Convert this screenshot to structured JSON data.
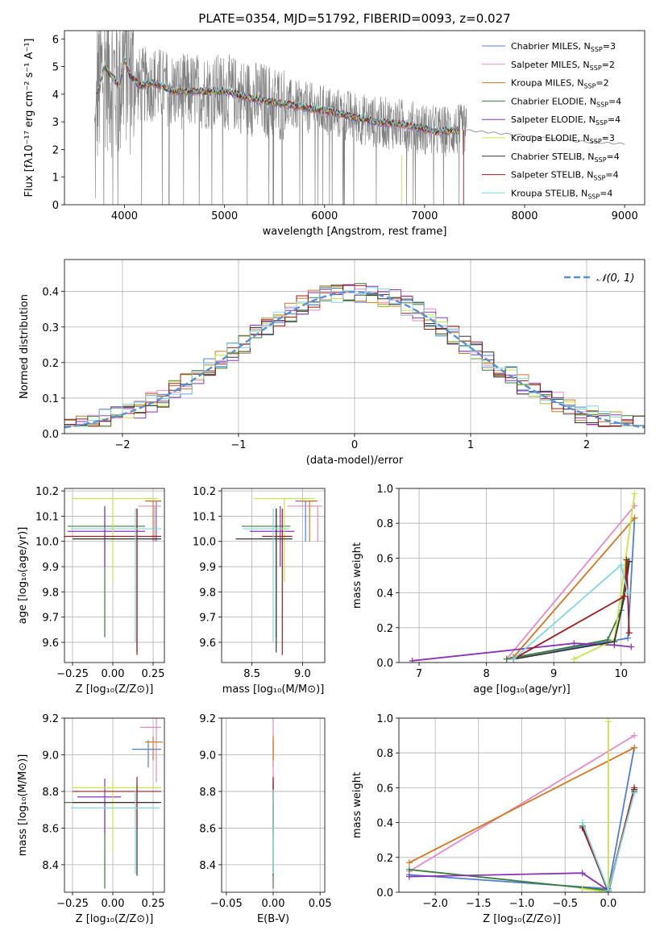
{
  "colors": {
    "Chabrier MILES": "#4f7fd0",
    "Salpeter MILES": "#e58ac6",
    "Kroupa MILES": "#d2771c",
    "Chabrier ELODIE": "#3d7d3d",
    "Salpeter ELODIE": "#8b32b8",
    "Kroupa ELODIE": "#c9e34a",
    "Chabrier STELIB": "#333333",
    "Salpeter STELIB": "#a01b1b",
    "Kroupa STELIB": "#7fd7de",
    "data": "#808080",
    "normal": "#5a8fd6"
  },
  "chart_data": [
    {
      "id": "spectrum",
      "type": "line",
      "title": "PLATE=0354, MJD=51792, FIBERID=0093, z=0.027",
      "xlabel": "wavelength [Angstrom, rest frame]",
      "ylabel": "Flux [fλ10⁻¹⁷ erg cm⁻² s⁻¹ A⁻¹]",
      "xlim": [
        3400,
        9200
      ],
      "ylim": [
        0,
        6.3
      ],
      "xticks": [
        4000,
        5000,
        6000,
        7000,
        8000,
        9000
      ],
      "yticks": [
        0,
        1,
        2,
        3,
        4,
        5,
        6
      ],
      "legend_position": "top-right",
      "model_shape": [
        [
          3720,
          4.0
        ],
        [
          3750,
          4.3
        ],
        [
          3800,
          5.0
        ],
        [
          3860,
          4.7
        ],
        [
          3950,
          4.3
        ],
        [
          4000,
          5.3
        ],
        [
          4050,
          4.7
        ],
        [
          4150,
          4.3
        ],
        [
          4300,
          4.4
        ],
        [
          4500,
          4.1
        ],
        [
          4800,
          4.1
        ],
        [
          5000,
          4.1
        ],
        [
          5200,
          3.9
        ],
        [
          5500,
          3.7
        ],
        [
          6000,
          3.4
        ],
        [
          6500,
          3.0
        ],
        [
          6800,
          2.9
        ],
        [
          7100,
          2.65
        ],
        [
          7400,
          2.7
        ],
        [
          8000,
          2.5
        ],
        [
          8500,
          2.3
        ],
        [
          9000,
          2.2
        ]
      ],
      "series": [
        {
          "name": "Chabrier MILES, N_SSP=3",
          "label_main": "Chabrier MILES, N",
          "label_sub": "SSP",
          "label_end": "=3"
        },
        {
          "name": "Salpeter MILES, N_SSP=2",
          "label_main": "Salpeter MILES, N",
          "label_sub": "SSP",
          "label_end": "=2"
        },
        {
          "name": "Kroupa MILES, N_SSP=2",
          "label_main": "Kroupa MILES, N",
          "label_sub": "SSP",
          "label_end": "=2"
        },
        {
          "name": "Chabrier ELODIE, N_SSP=4",
          "label_main": "Chabrier ELODIE, N",
          "label_sub": "SSP",
          "label_end": "=4"
        },
        {
          "name": "Salpeter ELODIE, N_SSP=4",
          "label_main": "Salpeter ELODIE, N",
          "label_sub": "SSP",
          "label_end": "=4"
        },
        {
          "name": "Kroupa ELODIE, N_SSP=3",
          "label_main": "Kroupa ELODIE, N",
          "label_sub": "SSP",
          "label_end": "=3"
        },
        {
          "name": "Chabrier STELIB, N_SSP=4",
          "label_main": "Chabrier STELIB, N",
          "label_sub": "SSP",
          "label_end": "=4"
        },
        {
          "name": "Salpeter STELIB, N_SSP=4",
          "label_main": "Salpeter STELIB, N",
          "label_sub": "SSP",
          "label_end": "=4"
        },
        {
          "name": "Kroupa STELIB, N_SSP=4",
          "label_main": "Kroupa STELIB, N",
          "label_sub": "SSP",
          "label_end": "=4"
        }
      ]
    },
    {
      "id": "residuals",
      "type": "line",
      "xlabel": "(data-model)/error",
      "ylabel": "Normed distribution",
      "xlim": [
        -2.5,
        2.5
      ],
      "ylim": [
        0,
        0.49
      ],
      "xticks": [
        -2,
        -1,
        0,
        1,
        2
      ],
      "yticks": [
        0.0,
        0.1,
        0.2,
        0.3,
        0.4
      ],
      "grid": true,
      "legend": "𝒩(0, 1)",
      "legend_position": "top-right"
    },
    {
      "id": "age_vs_Z",
      "type": "scatter",
      "xlabel": "Z [log₁₀(Z/Z⊙)]",
      "ylabel": "age [log₁₀(age/yr)]",
      "xlim": [
        -0.3,
        0.32
      ],
      "ylim": [
        9.52,
        10.21
      ],
      "xticks": [
        -0.25,
        0.0,
        0.25
      ],
      "yticks": [
        9.6,
        9.7,
        9.8,
        9.9,
        10.0,
        10.1,
        10.2
      ],
      "grid": true,
      "points": [
        {
          "model": "Chabrier MILES",
          "x": 0.27,
          "y": 10.16,
          "xerr": [
            0.05,
            0.03
          ],
          "yerr": [
            0.16,
            0.0
          ]
        },
        {
          "model": "Salpeter MILES",
          "x": 0.26,
          "y": 10.14,
          "xerr": [
            0.1,
            0.04
          ],
          "yerr": [
            0.14,
            0.0
          ]
        },
        {
          "model": "Kroupa MILES",
          "x": 0.25,
          "y": 10.16,
          "xerr": [
            0.05,
            0.05
          ],
          "yerr": [
            0.16,
            0.0
          ]
        },
        {
          "model": "Chabrier ELODIE",
          "x": -0.05,
          "y": 10.06,
          "xerr": [
            0.23,
            0.25
          ],
          "yerr": [
            0.44,
            0.07
          ]
        },
        {
          "model": "Salpeter ELODIE",
          "x": -0.05,
          "y": 10.04,
          "xerr": [
            0.23,
            0.25
          ],
          "yerr": [
            0.14,
            0.1
          ]
        },
        {
          "model": "Kroupa ELODIE",
          "x": -0.0,
          "y": 10.17,
          "xerr": [
            0.25,
            0.28
          ],
          "yerr": [
            0.33,
            0.0
          ]
        },
        {
          "model": "Chabrier STELIB",
          "x": 0.15,
          "y": 10.01,
          "xerr": [
            0.4,
            0.15
          ],
          "yerr": [
            0.45,
            0.12
          ]
        },
        {
          "model": "Salpeter STELIB",
          "x": 0.15,
          "y": 10.02,
          "xerr": [
            0.45,
            0.15
          ],
          "yerr": [
            0.47,
            0.11
          ]
        },
        {
          "model": "Kroupa STELIB",
          "x": 0.14,
          "y": 10.05,
          "xerr": [
            0.4,
            0.16
          ],
          "yerr": [
            0.45,
            0.08
          ]
        }
      ]
    },
    {
      "id": "age_vs_mass",
      "type": "scatter",
      "xlabel": "mass [log₁₀(M/M⊙)]",
      "ylabel": "",
      "xlim": [
        8.2,
        9.22
      ],
      "ylim": [
        9.52,
        10.21
      ],
      "xticks": [
        8.5,
        9.0
      ],
      "yticks": [
        9.6,
        9.7,
        9.8,
        9.9,
        10.0,
        10.1,
        10.2
      ],
      "grid": true,
      "points": [
        {
          "model": "Chabrier MILES",
          "x": 9.03,
          "y": 10.16,
          "xerr": [
            0.1,
            0.1
          ],
          "yerr": [
            0.16,
            0.0
          ]
        },
        {
          "model": "Salpeter MILES",
          "x": 9.15,
          "y": 10.14,
          "xerr": [
            0.3,
            0.05
          ],
          "yerr": [
            0.14,
            0.0
          ]
        },
        {
          "model": "Kroupa MILES",
          "x": 9.07,
          "y": 10.16,
          "xerr": [
            0.1,
            0.08
          ],
          "yerr": [
            0.16,
            0.0
          ]
        },
        {
          "model": "Chabrier ELODIE",
          "x": 8.74,
          "y": 10.06,
          "xerr": [
            0.34,
            0.14
          ],
          "yerr": [
            0.44,
            0.07
          ]
        },
        {
          "model": "Salpeter ELODIE",
          "x": 8.78,
          "y": 10.04,
          "xerr": [
            0.3,
            0.14
          ],
          "yerr": [
            0.14,
            0.1
          ]
        },
        {
          "model": "Kroupa ELODIE",
          "x": 8.82,
          "y": 10.17,
          "xerr": [
            0.3,
            0.3
          ],
          "yerr": [
            0.33,
            0.0
          ]
        },
        {
          "model": "Chabrier STELIB",
          "x": 8.74,
          "y": 10.01,
          "xerr": [
            0.4,
            0.16
          ],
          "yerr": [
            0.45,
            0.12
          ]
        },
        {
          "model": "Salpeter STELIB",
          "x": 8.8,
          "y": 10.02,
          "xerr": [
            0.2,
            0.1
          ],
          "yerr": [
            0.47,
            0.11
          ]
        },
        {
          "model": "Kroupa STELIB",
          "x": 8.71,
          "y": 10.05,
          "xerr": [
            0.3,
            0.16
          ],
          "yerr": [
            0.45,
            0.08
          ]
        }
      ]
    },
    {
      "id": "massweight_vs_age",
      "type": "line",
      "xlabel": "age [log₁₀(age/yr)]",
      "ylabel": "mass weight",
      "xlim": [
        6.7,
        10.35
      ],
      "ylim": [
        0,
        1.0
      ],
      "xticks": [
        7,
        8,
        9,
        10
      ],
      "yticks": [
        0.0,
        0.2,
        0.4,
        0.6,
        0.8,
        1.0
      ],
      "grid": true,
      "series": [
        {
          "model": "Chabrier MILES",
          "x": [
            8.4,
            10.1,
            10.2
          ],
          "y": [
            0.03,
            0.14,
            0.83
          ]
        },
        {
          "model": "Salpeter MILES",
          "x": [
            8.3,
            10.2
          ],
          "y": [
            0.02,
            0.9
          ]
        },
        {
          "model": "Kroupa MILES",
          "x": [
            8.4,
            10.2
          ],
          "y": [
            0.03,
            0.83
          ]
        },
        {
          "model": "Chabrier ELODIE",
          "x": [
            8.3,
            9.8,
            10.0,
            10.1
          ],
          "y": [
            0.02,
            0.13,
            0.3,
            0.58
          ]
        },
        {
          "model": "Salpeter ELODIE",
          "x": [
            6.9,
            9.3,
            9.9,
            10.15
          ],
          "y": [
            0.01,
            0.11,
            0.1,
            0.09
          ]
        },
        {
          "model": "Kroupa ELODIE",
          "x": [
            9.3,
            9.9,
            10.2
          ],
          "y": [
            0.02,
            0.13,
            0.97
          ]
        },
        {
          "model": "Chabrier STELIB",
          "x": [
            8.4,
            9.9,
            10.05,
            10.12
          ],
          "y": [
            0.02,
            0.12,
            0.38,
            0.58
          ]
        },
        {
          "model": "Salpeter STELIB",
          "x": [
            8.4,
            10.05,
            10.08,
            10.12
          ],
          "y": [
            0.02,
            0.38,
            0.59,
            0.17
          ]
        },
        {
          "model": "Kroupa STELIB",
          "x": [
            8.4,
            10.0,
            10.1
          ],
          "y": [
            0.02,
            0.56,
            0.4
          ]
        }
      ]
    },
    {
      "id": "mass_vs_Z",
      "type": "scatter",
      "xlabel": "Z [log₁₀(Z/Z⊙)]",
      "ylabel": "mass [log₁₀(M/M⊙)]",
      "xlim": [
        -0.3,
        0.32
      ],
      "ylim": [
        8.25,
        9.2
      ],
      "xticks": [
        -0.25,
        0.0,
        0.25
      ],
      "yticks": [
        8.4,
        8.6,
        8.8,
        9.0,
        9.2
      ],
      "grid": true,
      "points": [
        {
          "model": "Chabrier MILES",
          "x": 0.22,
          "y": 9.03,
          "xerr": [
            0.1,
            0.08
          ],
          "yerr": [
            0.1,
            0.05
          ]
        },
        {
          "model": "Salpeter MILES",
          "x": 0.27,
          "y": 9.15,
          "xerr": [
            0.1,
            0.03
          ],
          "yerr": [
            0.3,
            0.05
          ]
        },
        {
          "model": "Kroupa MILES",
          "x": 0.25,
          "y": 9.07,
          "xerr": [
            0.05,
            0.06
          ],
          "yerr": [
            0.1,
            0.03
          ]
        },
        {
          "model": "Chabrier ELODIE",
          "x": -0.05,
          "y": 8.74,
          "xerr": [
            0.25,
            0.33
          ],
          "yerr": [
            0.47,
            0.0
          ]
        },
        {
          "model": "Salpeter ELODIE",
          "x": -0.05,
          "y": 8.77,
          "xerr": [
            0.17,
            0.1
          ],
          "yerr": [
            0.2,
            0.1
          ]
        },
        {
          "model": "Kroupa ELODIE",
          "x": -0.0,
          "y": 8.82,
          "xerr": [
            0.25,
            0.3
          ],
          "yerr": [
            0.35,
            0.05
          ]
        },
        {
          "model": "Chabrier STELIB",
          "x": 0.15,
          "y": 8.74,
          "xerr": [
            0.4,
            0.15
          ],
          "yerr": [
            0.4,
            0.1
          ]
        },
        {
          "model": "Salpeter STELIB",
          "x": 0.15,
          "y": 8.8,
          "xerr": [
            0.4,
            0.15
          ],
          "yerr": [
            0.2,
            0.08
          ]
        },
        {
          "model": "Kroupa STELIB",
          "x": 0.14,
          "y": 8.71,
          "xerr": [
            0.4,
            0.15
          ],
          "yerr": [
            0.36,
            0.1
          ]
        }
      ]
    },
    {
      "id": "mass_vs_EBV",
      "type": "scatter",
      "xlabel": "E(B-V)",
      "ylabel": "",
      "xlim": [
        -0.055,
        0.055
      ],
      "ylim": [
        8.25,
        9.2
      ],
      "xticks": [
        -0.05,
        0.0,
        0.05
      ],
      "yticks": [
        8.4,
        8.6,
        8.8,
        9.0,
        9.2
      ],
      "grid": true,
      "points": [
        {
          "model": "Chabrier MILES",
          "x": 0.0,
          "y": 9.03,
          "xerr": [
            0,
            0
          ],
          "yerr": [
            0.1,
            0.05
          ]
        },
        {
          "model": "Salpeter MILES",
          "x": 0.0,
          "y": 9.15,
          "xerr": [
            0,
            0
          ],
          "yerr": [
            0.3,
            0.05
          ]
        },
        {
          "model": "Kroupa MILES",
          "x": 0.0,
          "y": 9.07,
          "xerr": [
            0,
            0
          ],
          "yerr": [
            0.1,
            0.03
          ]
        },
        {
          "model": "Chabrier ELODIE",
          "x": 0.0,
          "y": 8.74,
          "xerr": [
            0,
            0
          ],
          "yerr": [
            0.47,
            0.0
          ]
        },
        {
          "model": "Salpeter ELODIE",
          "x": 0.0,
          "y": 8.77,
          "xerr": [
            0,
            0
          ],
          "yerr": [
            0.2,
            0.1
          ]
        },
        {
          "model": "Kroupa ELODIE",
          "x": 0.0,
          "y": 8.82,
          "xerr": [
            0,
            0
          ],
          "yerr": [
            0.35,
            0.05
          ]
        },
        {
          "model": "Chabrier STELIB",
          "x": 0.0,
          "y": 8.74,
          "xerr": [
            0,
            0
          ],
          "yerr": [
            0.4,
            0.1
          ]
        },
        {
          "model": "Salpeter STELIB",
          "x": 0.0,
          "y": 8.8,
          "xerr": [
            0,
            0
          ],
          "yerr": [
            0.2,
            0.08
          ]
        },
        {
          "model": "Kroupa STELIB",
          "x": 0.0,
          "y": 8.71,
          "xerr": [
            0,
            0
          ],
          "yerr": [
            0.36,
            0.1
          ]
        }
      ]
    },
    {
      "id": "massweight_vs_Z",
      "type": "line",
      "xlabel": "Z [log₁₀(Z/Z⊙)]",
      "ylabel": "mass weight",
      "xlim": [
        -2.42,
        0.42
      ],
      "ylim": [
        0,
        1.0
      ],
      "xticks": [
        -2.0,
        -1.5,
        -1.0,
        -0.5,
        0.0
      ],
      "yticks": [
        0.0,
        0.2,
        0.4,
        0.6,
        0.8,
        1.0
      ],
      "grid": true,
      "series": [
        {
          "model": "Chabrier MILES",
          "x": [
            -2.3,
            0.0,
            0.3
          ],
          "y": [
            0.1,
            0.02,
            0.83
          ]
        },
        {
          "model": "Salpeter MILES",
          "x": [
            -2.3,
            0.3
          ],
          "y": [
            0.12,
            0.9
          ]
        },
        {
          "model": "Kroupa MILES",
          "x": [
            -2.3,
            0.3
          ],
          "y": [
            0.17,
            0.83
          ]
        },
        {
          "model": "Chabrier ELODIE",
          "x": [
            -2.3,
            0.0,
            0.3
          ],
          "y": [
            0.13,
            0.01,
            0.58
          ]
        },
        {
          "model": "Salpeter ELODIE",
          "x": [
            -2.3,
            -0.3,
            0.0,
            0.3
          ],
          "y": [
            0.09,
            0.11,
            0.01,
            0.59
          ]
        },
        {
          "model": "Kroupa ELODIE",
          "x": [
            -0.3,
            0.0,
            0.0
          ],
          "y": [
            0.02,
            0.0,
            0.98
          ]
        },
        {
          "model": "Chabrier STELIB",
          "x": [
            -0.3,
            0.0,
            0.3
          ],
          "y": [
            0.38,
            0.0,
            0.59
          ]
        },
        {
          "model": "Salpeter STELIB",
          "x": [
            -0.3,
            0.0,
            0.3
          ],
          "y": [
            0.37,
            0.01,
            0.6
          ]
        },
        {
          "model": "Kroupa STELIB",
          "x": [
            -0.3,
            0.0,
            0.3
          ],
          "y": [
            0.4,
            0.01,
            0.57
          ]
        }
      ]
    }
  ]
}
